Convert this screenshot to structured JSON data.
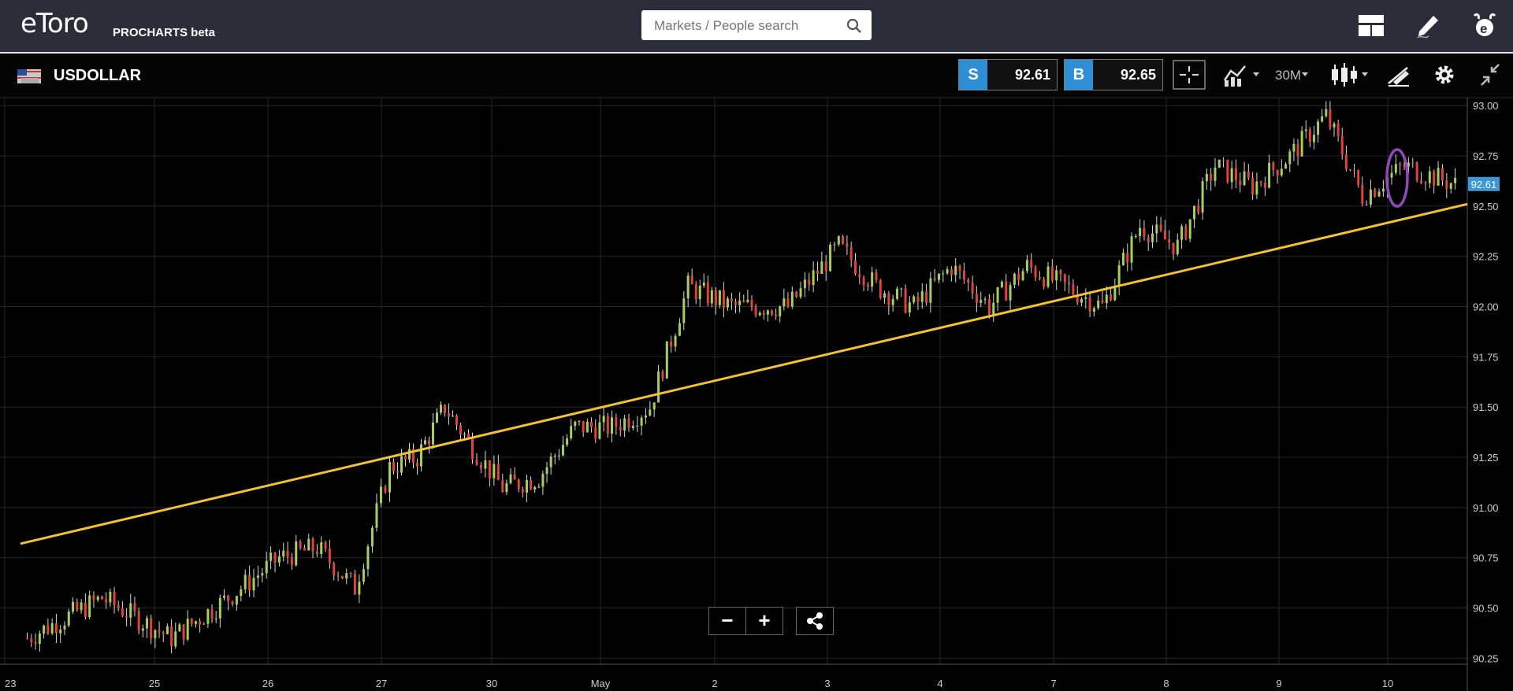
{
  "header": {
    "logo": "eToro",
    "logo_sub": "PROCHARTS beta",
    "search_placeholder": "Markets / People search",
    "icons": [
      "search-icon",
      "layout-icon",
      "pencil-icon",
      "etoro-icon"
    ]
  },
  "instrument": {
    "symbol": "USDOLLAR",
    "sell_label": "S",
    "sell_price": "92.61",
    "buy_label": "B",
    "buy_price": "92.65",
    "timeframe": "30M",
    "icons": [
      "flag-icon",
      "crosshair-icon",
      "indicators-icon",
      "candles-icon",
      "drawing-icon",
      "settings-icon",
      "collapse-icon"
    ]
  },
  "colors": {
    "sell_accent": "#2f8fd6",
    "trendline": "#f2c230",
    "highlight_ellipse": "#8e4bb8",
    "price_label": "#3a98d8"
  },
  "chart_data": {
    "type": "candlestick",
    "ylim": [
      90.22,
      93.04
    ],
    "y_ticks": [
      "93.00",
      "92.75",
      "92.50",
      "92.25",
      "92.00",
      "91.75",
      "91.50",
      "91.25",
      "91.00",
      "90.75",
      "90.50",
      "90.25"
    ],
    "x_ticks": [
      "23",
      "25",
      "26",
      "27",
      "30",
      "May",
      "2",
      "3",
      "4",
      "7",
      "8",
      "9",
      "10"
    ],
    "current_price": "92.61",
    "grid": true,
    "trendline": {
      "from": [
        "23",
        90.82
      ],
      "to": [
        "10",
        92.51
      ]
    },
    "close_path": [
      [
        "23",
        90.35
      ],
      [
        "23",
        90.55
      ],
      [
        "25",
        90.35
      ],
      [
        "25",
        90.55
      ],
      [
        "26",
        90.75
      ],
      [
        "26",
        90.8
      ],
      [
        "26",
        90.6
      ],
      [
        "27",
        91.2
      ],
      [
        "27",
        91.25
      ],
      [
        "27",
        91.5
      ],
      [
        "27",
        91.3
      ],
      [
        "30",
        91.1
      ],
      [
        "30",
        91.15
      ],
      [
        "30",
        91.4
      ],
      [
        "May",
        91.4
      ],
      [
        "May",
        91.5
      ],
      [
        "May",
        92.1
      ],
      [
        "2",
        92.0
      ],
      [
        "2",
        92.0
      ],
      [
        "3",
        92.3
      ],
      [
        "3",
        92.1
      ],
      [
        "3",
        92.0
      ],
      [
        "4",
        92.2
      ],
      [
        "4",
        92.0
      ],
      [
        "4",
        92.2
      ],
      [
        "7",
        92.1
      ],
      [
        "7",
        92.0
      ],
      [
        "7",
        92.4
      ],
      [
        "8",
        92.3
      ],
      [
        "8",
        92.7
      ],
      [
        "8",
        92.6
      ],
      [
        "9",
        92.75
      ],
      [
        "9",
        92.95
      ],
      [
        "9",
        92.55
      ],
      [
        "10",
        92.7
      ],
      [
        "10",
        92.6
      ]
    ]
  }
}
